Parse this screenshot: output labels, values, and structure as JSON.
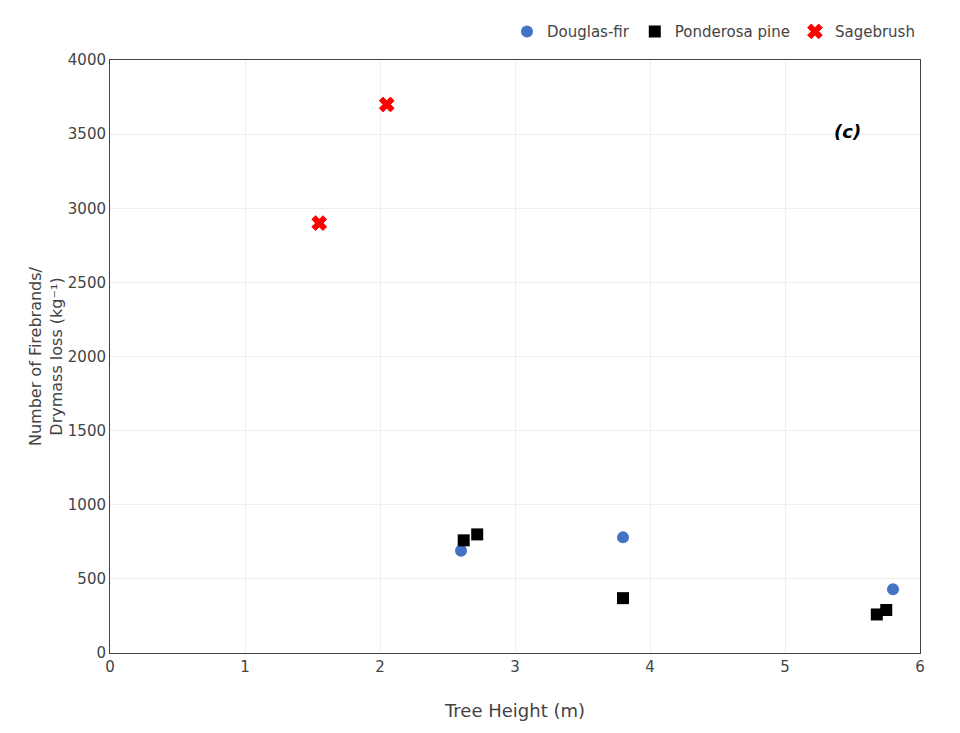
{
  "chart_data": {
    "type": "scatter",
    "xlabel": "Tree Height (m)",
    "ylabel": "Number of Firebrands/\nDrymass loss (kg⁻¹)",
    "series": [
      {
        "name": "Douglas-fir",
        "color": "#4472C4",
        "marker": "circle",
        "x": [
          2.6,
          3.8,
          5.8
        ],
        "values": [
          690,
          780,
          430
        ]
      },
      {
        "name": "Ponderosa pine",
        "color": "#000000",
        "marker": "square",
        "x": [
          2.62,
          2.72,
          3.8,
          5.68,
          5.75
        ],
        "values": [
          760,
          800,
          370,
          260,
          290
        ]
      },
      {
        "name": "Sagebrush",
        "color": "#FF0000",
        "marker": "x",
        "x": [
          1.55,
          2.05
        ],
        "values": [
          2900,
          3700
        ]
      }
    ],
    "xlim": [
      0,
      6
    ],
    "ylim": [
      0,
      4000
    ],
    "xticks": [
      0,
      1,
      2,
      3,
      4,
      5,
      6
    ],
    "yticks": [
      0,
      500,
      1000,
      1500,
      2000,
      2500,
      3000,
      3500,
      4000
    ],
    "annotations": [
      {
        "text": "(c)",
        "x": 5.35,
        "y": 3600
      }
    ],
    "grid": true,
    "legend": "upper right"
  }
}
